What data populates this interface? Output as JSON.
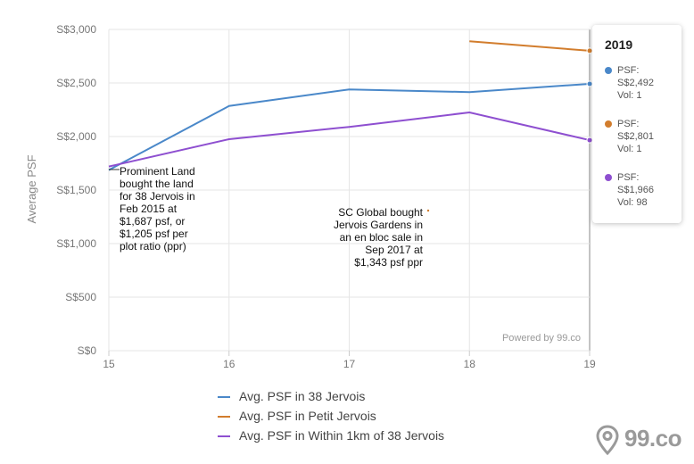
{
  "chart_data": {
    "type": "line",
    "ylabel": "Average PSF",
    "xlabel": "",
    "x": [
      15,
      16,
      17,
      18,
      19
    ],
    "x_tick_labels": [
      "15",
      "16",
      "17",
      "18",
      "19"
    ],
    "y_ticks": [
      0,
      500,
      1000,
      1500,
      2000,
      2500,
      3000
    ],
    "y_tick_labels": [
      "S$0",
      "S$500",
      "S$1,000",
      "S$1,500",
      "S$2,000",
      "S$2,500",
      "S$3,000"
    ],
    "ylim": [
      0,
      3000
    ],
    "xlim": [
      15,
      19
    ],
    "grid": true,
    "series": [
      {
        "name": "Avg. PSF in 38 Jervois",
        "color": "#4a88c9",
        "points": [
          [
            15,
            1687
          ],
          [
            16,
            2285
          ],
          [
            17,
            2440
          ],
          [
            18,
            2415
          ],
          [
            19,
            2492
          ]
        ]
      },
      {
        "name": "Avg. PSF in Petit Jervois",
        "color": "#d27d2d",
        "points": [
          [
            18,
            2890
          ],
          [
            19,
            2801
          ]
        ]
      },
      {
        "name": "Avg. PSF in Within 1km of 38 Jervois",
        "color": "#8e4fd0",
        "points": [
          [
            15,
            1720
          ],
          [
            16,
            1975
          ],
          [
            17,
            2090
          ],
          [
            18,
            2225
          ],
          [
            19,
            1966
          ]
        ]
      }
    ],
    "annotations": [
      {
        "text": "Prominent Land\nbought the land\nfor 38 Jervois in\nFeb 2015 at\n$1,687 psf, or\n$1,205 psf per\nplot ratio (ppr)"
      },
      {
        "text": "SC Global bought\nJervois Gardens in\nan en bloc sale in\nSep 2017 at\n$1,343 psf ppr"
      }
    ],
    "credit": "Powered by 99.co",
    "tooltip": {
      "title": "2019",
      "items": [
        {
          "psf": "PSF:\nS$2,492",
          "vol": "Vol: 1",
          "color": "#4a88c9"
        },
        {
          "psf": "PSF:\nS$2,801",
          "vol": "Vol: 1",
          "color": "#d27d2d"
        },
        {
          "psf": "PSF:\nS$1,966",
          "vol": "Vol: 98",
          "color": "#8e4fd0"
        }
      ]
    },
    "legend": [
      {
        "label": "Avg. PSF in 38 Jervois",
        "color": "#4a88c9"
      },
      {
        "label": "Avg. PSF in Petit Jervois",
        "color": "#d27d2d"
      },
      {
        "label": "Avg. PSF in Within 1km of 38 Jervois",
        "color": "#8e4fd0"
      }
    ]
  },
  "brand": {
    "logo_text": "99.co",
    "icon": "location-pin-icon"
  }
}
